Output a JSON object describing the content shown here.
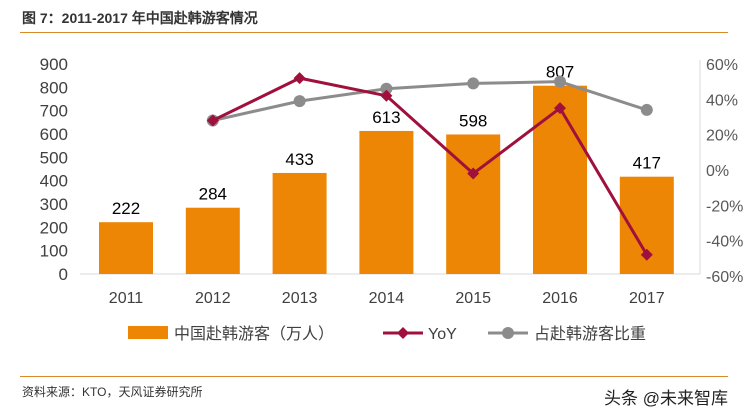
{
  "title": "图 7：2011-2017 年中国赴韩游客情况",
  "source": "资料来源：KTO，天风证券研究所",
  "watermark": "头条 @未来智库",
  "chart_data": {
    "type": "bar+line",
    "categories": [
      "2011",
      "2012",
      "2013",
      "2014",
      "2015",
      "2016",
      "2017"
    ],
    "left_axis": {
      "ylim": [
        0,
        900
      ],
      "ticks": [
        0,
        100,
        200,
        300,
        400,
        500,
        600,
        700,
        800,
        900
      ]
    },
    "right_axis": {
      "ylim": [
        -60,
        60
      ],
      "ticks": [
        "60%",
        "40%",
        "20%",
        "0%",
        "-20%",
        "-40%",
        "-60%"
      ],
      "tick_values": [
        60,
        40,
        20,
        0,
        -20,
        -40,
        -60
      ]
    },
    "grid": false,
    "legend_position": "bottom",
    "series": [
      {
        "name": "中国赴韩游客（万人）",
        "type": "bar",
        "axis": "left",
        "color": "#ed8505",
        "values": [
          222,
          284,
          433,
          613,
          598,
          807,
          417
        ],
        "labels": [
          "222",
          "284",
          "433",
          "613",
          "598",
          "807",
          "417"
        ]
      },
      {
        "name": "YoY",
        "type": "line",
        "axis": "right",
        "color": "#a0103c",
        "marker": "diamond",
        "values": [
          null,
          28,
          52,
          42,
          -2,
          35,
          -48
        ]
      },
      {
        "name": "占赴韩游客比重",
        "type": "line",
        "axis": "right",
        "color": "#8c8c8c",
        "marker": "circle",
        "values": [
          null,
          28,
          39,
          46,
          49,
          50,
          34
        ]
      }
    ]
  }
}
